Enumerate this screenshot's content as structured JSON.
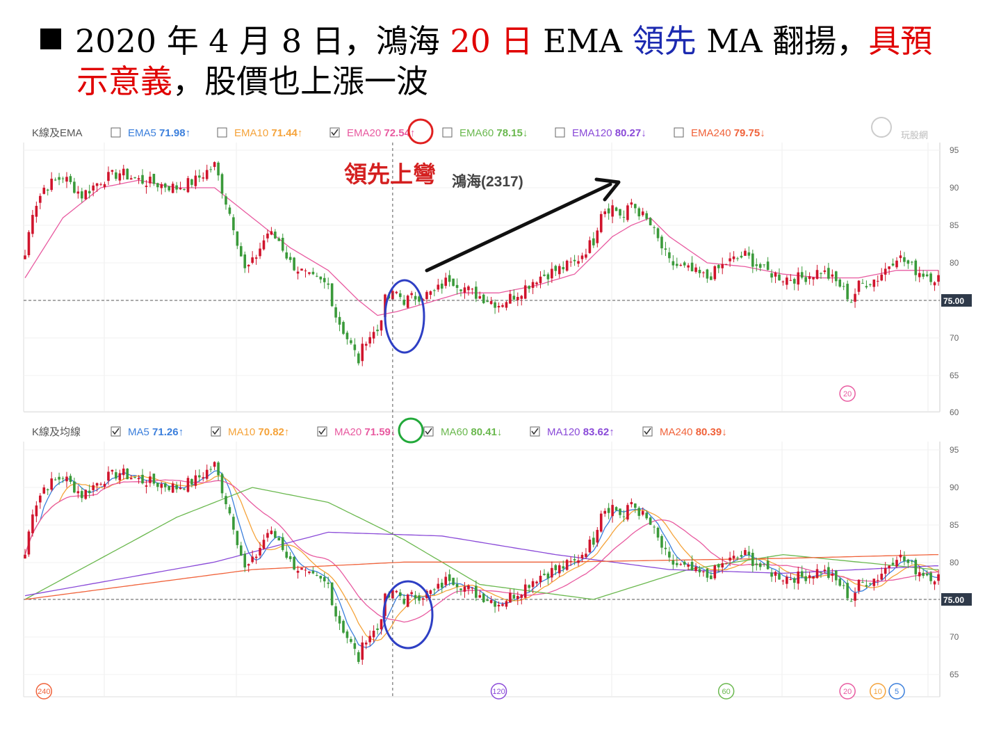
{
  "slide": {
    "title_parts": [
      {
        "text": "2020 年 4 月 8 日，鴻海 ",
        "color": "black"
      },
      {
        "text": "20 日",
        "color": "red"
      },
      {
        "text": " EMA ",
        "color": "black"
      },
      {
        "text": "領先",
        "color": "blue"
      },
      {
        "text": " MA 翻揚，",
        "color": "black"
      },
      {
        "text": "具預",
        "color": "red"
      }
    ],
    "title_line2_parts": [
      {
        "text": "示意義",
        "color": "red"
      },
      {
        "text": "，股價也上漲一波",
        "color": "black"
      }
    ]
  },
  "annotation": {
    "text": "領先上彎",
    "color": "#d42020"
  },
  "stock_label": "鴻海(2317)",
  "watermark": "玩股網",
  "colors": {
    "up": "#d0142c",
    "down": "#3a9a3a",
    "ema5": "#3b7fdc",
    "ema10": "#f5a33a",
    "ema20": "#e85aa0",
    "ema60": "#6ab84e",
    "ema120": "#8a4ad8",
    "ema240": "#f0623a"
  },
  "chart_data": [
    {
      "type": "candlestick",
      "panel": "K線及EMA",
      "legend": [
        {
          "label": "EMA5",
          "value": "71.98",
          "arrow": "↑",
          "checked": false,
          "color": "#3b7fdc"
        },
        {
          "label": "EMA10",
          "value": "71.44",
          "arrow": "↑",
          "checked": false,
          "color": "#f5a33a"
        },
        {
          "label": "EMA20",
          "value": "72.54",
          "arrow": "↑",
          "checked": true,
          "color": "#e85aa0"
        },
        {
          "label": "EMA60",
          "value": "78.15",
          "arrow": "↓",
          "checked": false,
          "color": "#6ab84e"
        },
        {
          "label": "EMA120",
          "value": "80.27",
          "arrow": "↓",
          "checked": false,
          "color": "#8a4ad8"
        },
        {
          "label": "EMA240",
          "value": "79.75",
          "arrow": "↓",
          "checked": false,
          "color": "#f0623a"
        }
      ],
      "y_ticks": [
        "95",
        "90",
        "85",
        "80",
        "75",
        "70",
        "65",
        "60"
      ],
      "ylim": [
        60,
        95
      ],
      "reference_line": 75,
      "reference_label": "75.00",
      "period_markers": [
        {
          "text": "20",
          "color": "#e85aa0",
          "day": 217
        }
      ]
    },
    {
      "type": "candlestick",
      "panel": "K線及均線",
      "legend": [
        {
          "label": "MA5",
          "value": "71.26",
          "arrow": "↑",
          "checked": true,
          "color": "#3b7fdc"
        },
        {
          "label": "MA10",
          "value": "70.82",
          "arrow": "↑",
          "checked": true,
          "color": "#f5a33a"
        },
        {
          "label": "MA20",
          "value": "71.59",
          "arrow": "↓",
          "checked": true,
          "color": "#e85aa0"
        },
        {
          "label": "MA60",
          "value": "80.41",
          "arrow": "↓",
          "checked": true,
          "color": "#6ab84e"
        },
        {
          "label": "MA120",
          "value": "83.62",
          "arrow": "↑",
          "checked": true,
          "color": "#8a4ad8"
        },
        {
          "label": "MA240",
          "value": "80.39",
          "arrow": "↓",
          "checked": true,
          "color": "#f0623a"
        }
      ],
      "y_ticks": [
        "95",
        "90",
        "85",
        "80",
        "75",
        "70",
        "65"
      ],
      "ylim": [
        63,
        97
      ],
      "reference_line": 75,
      "reference_label": "75.00",
      "period_markers": [
        {
          "text": "240",
          "color": "#f0623a",
          "day": 5
        },
        {
          "text": "120",
          "color": "#8a4ad8",
          "day": 125
        },
        {
          "text": "60",
          "color": "#6ab84e",
          "day": 185
        },
        {
          "text": "20",
          "color": "#e85aa0",
          "day": 217
        },
        {
          "text": "10",
          "color": "#f5a33a",
          "day": 225
        },
        {
          "text": "5",
          "color": "#3b7fdc",
          "day": 230
        }
      ]
    }
  ],
  "price_path": {
    "days": [
      0,
      2,
      5,
      10,
      15,
      20,
      25,
      30,
      35,
      40,
      45,
      50,
      55,
      58,
      60,
      64,
      67,
      70,
      75,
      80,
      82,
      85,
      88,
      90,
      93,
      95,
      98,
      100,
      103,
      108,
      112,
      118,
      125,
      130,
      135,
      140,
      145,
      150,
      152,
      155,
      158,
      160,
      165,
      170,
      175,
      180,
      185,
      190,
      195,
      200,
      205,
      210,
      215,
      218,
      220,
      225,
      230,
      235,
      240
    ],
    "prices": [
      81,
      87,
      90,
      91.5,
      89,
      91,
      92,
      91,
      90.5,
      90,
      91,
      93,
      85,
      79,
      80,
      84,
      83,
      80,
      78,
      77,
      73,
      70,
      67,
      70,
      71,
      75,
      76,
      75,
      75.5,
      76,
      78,
      76,
      74.5,
      76,
      78,
      79,
      80,
      83,
      87,
      87.5,
      86,
      88,
      85,
      80,
      79,
      78,
      80,
      81,
      79,
      78,
      78,
      79,
      77,
      75,
      77,
      78,
      81,
      79,
      78
    ]
  },
  "ema20_path": {
    "days": [
      0,
      10,
      20,
      30,
      40,
      50,
      60,
      70,
      80,
      88,
      93,
      98,
      105,
      115,
      125,
      135,
      145,
      150,
      155,
      160,
      165,
      170,
      180,
      190,
      200,
      210,
      220,
      230,
      240
    ],
    "values": [
      78,
      86,
      90,
      91,
      90,
      90,
      86,
      82,
      79,
      75,
      73,
      73.5,
      74.5,
      76,
      76,
      77,
      78.5,
      81,
      83.5,
      85,
      86,
      83.5,
      80,
      79.5,
      78.5,
      78,
      78,
      79,
      79
    ]
  },
  "selected_day": 97
}
